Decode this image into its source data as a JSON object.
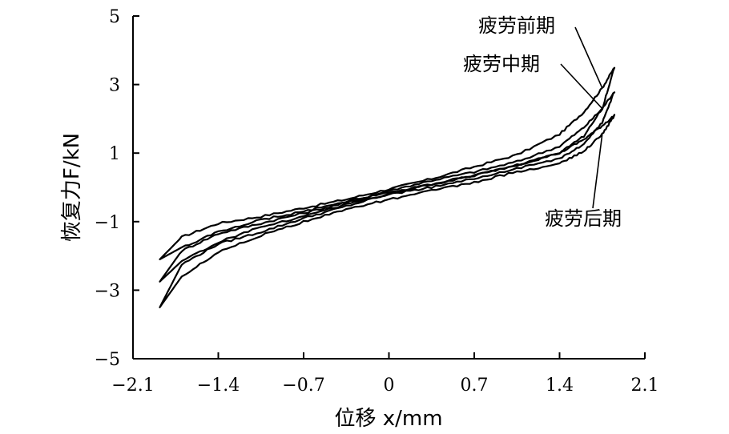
{
  "chart_data": {
    "type": "line",
    "title": "",
    "xlabel": "位移 x/mm",
    "ylabel": "恢复力F/kN",
    "xlim": [
      -2.1,
      2.1
    ],
    "ylim": [
      -5,
      5
    ],
    "xticks": [
      -2.1,
      -1.4,
      -0.7,
      0,
      0.7,
      1.4,
      2.1
    ],
    "xtick_labels": [
      "−2.1",
      "−1.4",
      "−0.7",
      "0",
      "0.7",
      "1.4",
      "2.1"
    ],
    "yticks": [
      -5,
      -3,
      -1,
      1,
      3,
      5
    ],
    "ytick_labels": [
      "−5",
      "−3",
      "−1",
      "1",
      "3",
      "5"
    ],
    "grid": false,
    "series": [
      {
        "name": "疲劳前期",
        "loop_type": "hysteresis",
        "upper": [
          [
            -1.88,
            -2.1
          ],
          [
            -1.7,
            -1.45
          ],
          [
            -1.4,
            -1.05
          ],
          [
            -1.05,
            -0.85
          ],
          [
            -0.7,
            -0.6
          ],
          [
            -0.35,
            -0.35
          ],
          [
            0,
            -0.05
          ],
          [
            0.35,
            0.25
          ],
          [
            0.7,
            0.6
          ],
          [
            1.05,
            0.95
          ],
          [
            1.4,
            1.55
          ],
          [
            1.6,
            2.2
          ],
          [
            1.75,
            2.9
          ],
          [
            1.85,
            3.5
          ]
        ],
        "lower": [
          [
            1.85,
            3.5
          ],
          [
            1.75,
            2.3
          ],
          [
            1.6,
            1.5
          ],
          [
            1.4,
            1.0
          ],
          [
            1.05,
            0.65
          ],
          [
            0.7,
            0.35
          ],
          [
            0.35,
            0.08
          ],
          [
            0,
            -0.15
          ],
          [
            -0.35,
            -0.4
          ],
          [
            -0.7,
            -0.7
          ],
          [
            -1.05,
            -0.95
          ],
          [
            -1.4,
            -1.3
          ],
          [
            -1.7,
            -1.75
          ],
          [
            -1.88,
            -2.1
          ]
        ]
      },
      {
        "name": "疲劳中期",
        "loop_type": "hysteresis",
        "upper": [
          [
            -1.88,
            -2.75
          ],
          [
            -1.7,
            -1.85
          ],
          [
            -1.4,
            -1.35
          ],
          [
            -1.05,
            -1.05
          ],
          [
            -0.7,
            -0.75
          ],
          [
            -0.35,
            -0.45
          ],
          [
            0,
            -0.1
          ],
          [
            0.35,
            0.2
          ],
          [
            0.7,
            0.45
          ],
          [
            1.05,
            0.75
          ],
          [
            1.4,
            1.2
          ],
          [
            1.6,
            1.75
          ],
          [
            1.75,
            2.3
          ],
          [
            1.85,
            2.8
          ]
        ],
        "lower": [
          [
            1.85,
            2.8
          ],
          [
            1.75,
            1.9
          ],
          [
            1.6,
            1.25
          ],
          [
            1.4,
            0.85
          ],
          [
            1.05,
            0.55
          ],
          [
            0.7,
            0.25
          ],
          [
            0.35,
            0.0
          ],
          [
            0,
            -0.2
          ],
          [
            -0.35,
            -0.5
          ],
          [
            -0.7,
            -0.85
          ],
          [
            -1.05,
            -1.15
          ],
          [
            -1.4,
            -1.6
          ],
          [
            -1.7,
            -2.15
          ],
          [
            -1.88,
            -2.75
          ]
        ]
      },
      {
        "name": "疲劳后期",
        "loop_type": "hysteresis",
        "upper": [
          [
            -1.88,
            -3.5
          ],
          [
            -1.7,
            -2.25
          ],
          [
            -1.4,
            -1.65
          ],
          [
            -1.05,
            -1.3
          ],
          [
            -0.7,
            -0.9
          ],
          [
            -0.35,
            -0.55
          ],
          [
            0,
            -0.2
          ],
          [
            0.35,
            0.1
          ],
          [
            0.7,
            0.35
          ],
          [
            1.05,
            0.65
          ],
          [
            1.4,
            1.0
          ],
          [
            1.6,
            1.4
          ],
          [
            1.75,
            1.8
          ],
          [
            1.85,
            2.1
          ]
        ],
        "lower": [
          [
            1.85,
            2.1
          ],
          [
            1.75,
            1.55
          ],
          [
            1.6,
            1.05
          ],
          [
            1.4,
            0.7
          ],
          [
            1.05,
            0.45
          ],
          [
            0.7,
            0.15
          ],
          [
            0.35,
            -0.1
          ],
          [
            0,
            -0.35
          ],
          [
            -0.35,
            -0.65
          ],
          [
            -0.7,
            -1.0
          ],
          [
            -1.05,
            -1.4
          ],
          [
            -1.4,
            -1.9
          ],
          [
            -1.7,
            -2.6
          ],
          [
            -1.88,
            -3.5
          ]
        ]
      }
    ],
    "annotations": [
      {
        "text": "疲劳前期",
        "series": "疲劳前期"
      },
      {
        "text": "疲劳中期",
        "series": "疲劳中期"
      },
      {
        "text": "疲劳后期",
        "series": "疲劳后期"
      }
    ]
  }
}
